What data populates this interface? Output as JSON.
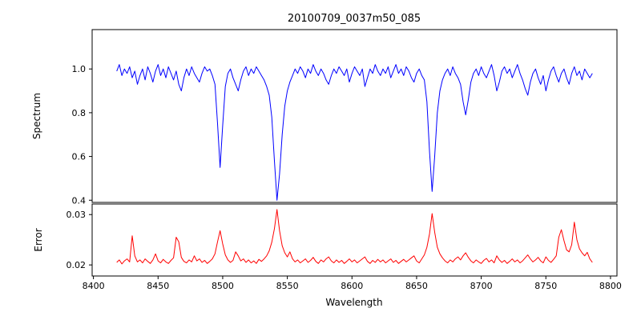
{
  "figure": {
    "background": "#ffffff"
  },
  "chart_data": {
    "type": "line",
    "title": "20100709_0037m50_085",
    "xlabel": "Wavelength",
    "grid": false,
    "legend": "none",
    "xlim": [
      8399,
      8805
    ],
    "xticks": [
      8400,
      8450,
      8500,
      8550,
      8600,
      8650,
      8700,
      8750,
      8800
    ],
    "x": [
      8418,
      8420,
      8422,
      8424,
      8426,
      8428,
      8430,
      8432,
      8434,
      8436,
      8438,
      8440,
      8442,
      8444,
      8446,
      8448,
      8450,
      8452,
      8454,
      8456,
      8458,
      8460,
      8462,
      8464,
      8466,
      8468,
      8470,
      8472,
      8474,
      8476,
      8478,
      8480,
      8482,
      8484,
      8486,
      8488,
      8490,
      8492,
      8494,
      8496,
      8498,
      8500,
      8502,
      8504,
      8506,
      8508,
      8510,
      8512,
      8514,
      8516,
      8518,
      8520,
      8522,
      8524,
      8526,
      8528,
      8530,
      8532,
      8534,
      8536,
      8538,
      8540,
      8542,
      8544,
      8546,
      8548,
      8550,
      8552,
      8554,
      8556,
      8558,
      8560,
      8562,
      8564,
      8566,
      8568,
      8570,
      8572,
      8574,
      8576,
      8578,
      8580,
      8582,
      8584,
      8586,
      8588,
      8590,
      8592,
      8594,
      8596,
      8598,
      8600,
      8602,
      8604,
      8606,
      8608,
      8610,
      8612,
      8614,
      8616,
      8618,
      8620,
      8622,
      8624,
      8626,
      8628,
      8630,
      8632,
      8634,
      8636,
      8638,
      8640,
      8642,
      8644,
      8646,
      8648,
      8650,
      8652,
      8654,
      8656,
      8658,
      8660,
      8662,
      8664,
      8666,
      8668,
      8670,
      8672,
      8674,
      8676,
      8678,
      8680,
      8682,
      8684,
      8686,
      8688,
      8690,
      8692,
      8694,
      8696,
      8698,
      8700,
      8702,
      8704,
      8706,
      8708,
      8710,
      8712,
      8714,
      8716,
      8718,
      8720,
      8722,
      8724,
      8726,
      8728,
      8730,
      8732,
      8734,
      8736,
      8738,
      8740,
      8742,
      8744,
      8746,
      8748,
      8750,
      8752,
      8754,
      8756,
      8758,
      8760,
      8762,
      8764,
      8766,
      8768,
      8770,
      8772,
      8774,
      8776,
      8778,
      8780,
      8782,
      8784,
      8786
    ],
    "panels": [
      {
        "name": "spectrum",
        "ylabel": "Spectrum",
        "color": "#0000ff",
        "ylim": [
          0.39,
          1.18
        ],
        "yticks": [
          0.4,
          0.6,
          0.8,
          1.0
        ],
        "ytick_labels": [
          "0.4",
          "0.6",
          "0.8",
          "1.0"
        ],
        "absorption_line_centers": [
          8498,
          8542,
          8662
        ],
        "y": [
          0.99,
          1.02,
          0.97,
          1.0,
          0.98,
          1.01,
          0.96,
          0.99,
          0.93,
          0.97,
          1.0,
          0.95,
          1.01,
          0.98,
          0.94,
          0.99,
          1.02,
          0.97,
          1.0,
          0.96,
          1.01,
          0.98,
          0.95,
          0.99,
          0.93,
          0.9,
          0.96,
          1.0,
          0.97,
          1.01,
          0.98,
          0.96,
          0.94,
          0.98,
          1.01,
          0.99,
          1.0,
          0.97,
          0.93,
          0.75,
          0.55,
          0.74,
          0.92,
          0.98,
          1.0,
          0.96,
          0.93,
          0.9,
          0.95,
          0.99,
          1.01,
          0.97,
          1.0,
          0.98,
          1.01,
          0.99,
          0.97,
          0.95,
          0.92,
          0.88,
          0.78,
          0.58,
          0.4,
          0.52,
          0.7,
          0.83,
          0.9,
          0.94,
          0.97,
          1.0,
          0.98,
          1.01,
          0.99,
          0.96,
          1.0,
          0.98,
          1.02,
          0.99,
          0.97,
          1.0,
          0.98,
          0.95,
          0.93,
          0.97,
          1.0,
          0.98,
          1.01,
          0.99,
          0.97,
          1.0,
          0.94,
          0.98,
          1.01,
          0.99,
          0.97,
          1.0,
          0.92,
          0.96,
          1.0,
          0.98,
          1.02,
          0.99,
          0.97,
          1.0,
          0.98,
          1.01,
          0.96,
          0.99,
          1.02,
          0.98,
          1.0,
          0.97,
          1.01,
          0.99,
          0.96,
          0.94,
          0.98,
          1.0,
          0.97,
          0.95,
          0.85,
          0.62,
          0.44,
          0.6,
          0.8,
          0.9,
          0.95,
          0.98,
          1.0,
          0.97,
          1.01,
          0.98,
          0.96,
          0.93,
          0.85,
          0.79,
          0.86,
          0.94,
          0.98,
          1.0,
          0.97,
          1.01,
          0.98,
          0.96,
          0.99,
          1.02,
          0.97,
          0.9,
          0.94,
          0.99,
          1.01,
          0.98,
          1.0,
          0.96,
          0.99,
          1.02,
          0.98,
          0.95,
          0.91,
          0.88,
          0.94,
          0.98,
          1.0,
          0.96,
          0.93,
          0.97,
          0.9,
          0.95,
          0.99,
          1.01,
          0.97,
          0.94,
          0.98,
          1.0,
          0.96,
          0.93,
          0.98,
          1.01,
          0.97,
          0.99,
          0.95,
          1.0,
          0.98,
          0.96,
          0.98
        ]
      },
      {
        "name": "error",
        "ylabel": "Error",
        "color": "#ff0000",
        "ylim": [
          0.0178,
          0.0321
        ],
        "yticks": [
          0.02,
          0.03
        ],
        "ytick_labels": [
          "0.02",
          "0.03"
        ],
        "y": [
          0.0205,
          0.021,
          0.0202,
          0.0208,
          0.0212,
          0.0206,
          0.0258,
          0.0218,
          0.0206,
          0.021,
          0.0204,
          0.0212,
          0.0207,
          0.0203,
          0.021,
          0.0222,
          0.0208,
          0.0204,
          0.0211,
          0.0206,
          0.0203,
          0.0209,
          0.0214,
          0.0255,
          0.0246,
          0.0215,
          0.0207,
          0.0204,
          0.021,
          0.0206,
          0.0218,
          0.0208,
          0.0212,
          0.0205,
          0.0209,
          0.0203,
          0.0207,
          0.0212,
          0.0222,
          0.0246,
          0.0268,
          0.0242,
          0.022,
          0.021,
          0.0205,
          0.0209,
          0.0226,
          0.0218,
          0.0208,
          0.0212,
          0.0205,
          0.021,
          0.0204,
          0.0208,
          0.0203,
          0.0211,
          0.0207,
          0.0212,
          0.0218,
          0.0228,
          0.0245,
          0.0272,
          0.031,
          0.0268,
          0.0238,
          0.0224,
          0.0216,
          0.0226,
          0.0212,
          0.0206,
          0.021,
          0.0204,
          0.0208,
          0.0212,
          0.0205,
          0.0209,
          0.0215,
          0.0207,
          0.0203,
          0.021,
          0.0206,
          0.0212,
          0.0216,
          0.0208,
          0.0204,
          0.021,
          0.0205,
          0.0209,
          0.0203,
          0.0207,
          0.0212,
          0.0206,
          0.021,
          0.0204,
          0.0208,
          0.0212,
          0.0216,
          0.0207,
          0.0203,
          0.0209,
          0.0205,
          0.0211,
          0.0206,
          0.021,
          0.0204,
          0.0208,
          0.0212,
          0.0205,
          0.0209,
          0.0203,
          0.0207,
          0.0211,
          0.0206,
          0.021,
          0.0214,
          0.0218,
          0.0208,
          0.0204,
          0.0212,
          0.022,
          0.0235,
          0.0262,
          0.0302,
          0.0265,
          0.0235,
          0.0222,
          0.0214,
          0.0208,
          0.0204,
          0.021,
          0.0206,
          0.0212,
          0.0216,
          0.021,
          0.0218,
          0.0224,
          0.0215,
          0.0208,
          0.0204,
          0.021,
          0.0206,
          0.0203,
          0.0209,
          0.0213,
          0.0206,
          0.021,
          0.0204,
          0.0218,
          0.021,
          0.0205,
          0.0209,
          0.0203,
          0.0207,
          0.0212,
          0.0206,
          0.021,
          0.0204,
          0.0208,
          0.0214,
          0.022,
          0.0212,
          0.0206,
          0.021,
          0.0215,
          0.0208,
          0.0204,
          0.0216,
          0.0209,
          0.0205,
          0.0211,
          0.0218,
          0.0255,
          0.027,
          0.0248,
          0.023,
          0.0226,
          0.024,
          0.0285,
          0.025,
          0.0232,
          0.0224,
          0.0218,
          0.0225,
          0.0212,
          0.0205
        ]
      }
    ]
  }
}
